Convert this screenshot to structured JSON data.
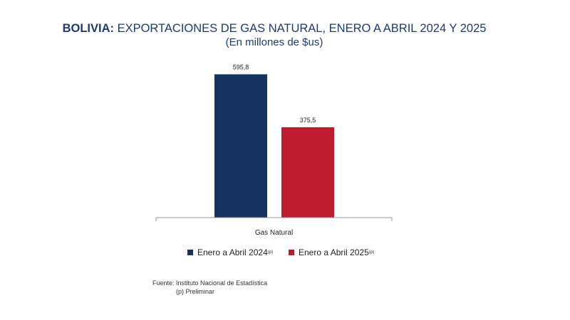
{
  "title_bold": "BOLIVIA:",
  "title_rest": " EXPORTACIONES DE GAS NATURAL, ENERO A ABRIL 2024 Y 2025",
  "subtitle": "(En millones de $us)",
  "chart_data": {
    "type": "bar",
    "categories": [
      "Gas Natural"
    ],
    "series": [
      {
        "name": "Enero a Abril  2024",
        "values": [
          595.8
        ],
        "value_label": "595,8",
        "color": "#16335f"
      },
      {
        "name": "Enero a Abril  2025",
        "values": [
          375.5
        ],
        "value_label": "375,5",
        "color": "#c01c2f"
      }
    ],
    "ylim": [
      0,
      680
    ]
  },
  "legend": [
    {
      "label": "Enero a Abril  2024",
      "sup": "(p)",
      "color": "#16335f"
    },
    {
      "label": "Enero a Abril  2025",
      "sup": "(p)",
      "color": "#c01c2f"
    }
  ],
  "source": "Fuente: Instituto Nacional de Estadística",
  "note": "(p) Preliminar"
}
